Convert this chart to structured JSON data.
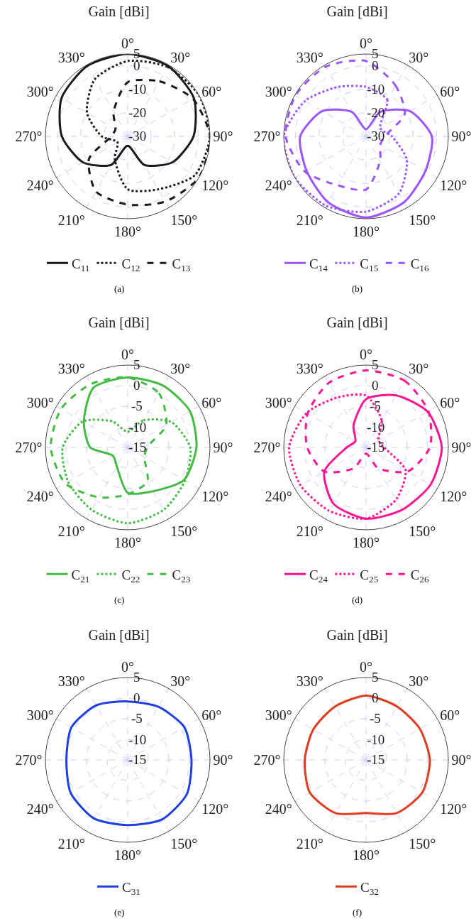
{
  "chart_data": [
    {
      "type": "radar",
      "title": "Gain [dBi]",
      "annotations": [
        "(a)"
      ],
      "categories": [
        "0°",
        "30°",
        "60°",
        "90°",
        "120°",
        "150°",
        "180°",
        "210°",
        "240°",
        "270°",
        "300°",
        "330°"
      ],
      "ylim": [
        -30,
        5
      ],
      "yticks": [
        -30,
        -20,
        -10,
        0,
        5
      ],
      "grid": true,
      "legend": "bottom",
      "series": [
        {
          "name": "C$_{11}$",
          "color": "#1a1a1a",
          "line_style": "solid",
          "values": [
            5,
            4.5,
            2.5,
            -2,
            -8,
            -16,
            -26,
            -16,
            -8,
            -2,
            2.5,
            4.5
          ]
        },
        {
          "name": "C$_{12}$",
          "color": "#1a1a1a",
          "line_style": "dotted",
          "values": [
            2,
            4,
            5,
            5,
            3,
            -4,
            -7.5,
            -19,
            -25,
            -19,
            -10,
            -2
          ]
        },
        {
          "name": "C$_{13}$",
          "color": "#1a1a1a",
          "line_style": "dashed",
          "values": [
            -7,
            -3,
            2,
            5,
            5,
            2,
            -1,
            -3,
            -11,
            -23,
            -24,
            -18
          ]
        }
      ]
    },
    {
      "type": "radar",
      "title": "Gain [dBi]",
      "annotations": [
        "(b)"
      ],
      "categories": [
        "0°",
        "30°",
        "60°",
        "90°",
        "120°",
        "150°",
        "180°",
        "210°",
        "240°",
        "270°",
        "300°",
        "330°"
      ],
      "ylim": [
        -30,
        5
      ],
      "yticks": [
        -30,
        -20,
        -10,
        0,
        5
      ],
      "grid": true,
      "legend": "bottom",
      "series": [
        {
          "name": "C$_{14}$",
          "color": "#9d55ff",
          "line_style": "solid",
          "values": [
            -27,
            -18,
            -8.5,
            -2,
            -0.8,
            2.3,
            4.5,
            2.3,
            -0.8,
            -2,
            -8.5,
            -18
          ]
        },
        {
          "name": "C$_{15}$",
          "color": "#9d55ff",
          "line_style": "dotted",
          "values": [
            -9,
            -12,
            -23,
            -19,
            -10,
            -2,
            2,
            4,
            5,
            5,
            0,
            -5.8
          ]
        },
        {
          "name": "C$_{16}$",
          "color": "#9d55ff",
          "line_style": "dashed",
          "values": [
            2,
            -5,
            -11,
            -22,
            -23,
            -18,
            -7.4,
            -6,
            0,
            4.2,
            4.7,
            4.2
          ]
        }
      ]
    },
    {
      "type": "radar",
      "title": "Gain [dBi]",
      "annotations": [
        "(c)"
      ],
      "categories": [
        "0°",
        "30°",
        "60°",
        "90°",
        "120°",
        "150°",
        "180°",
        "210°",
        "240°",
        "270°",
        "300°",
        "330°"
      ],
      "ylim": [
        -15,
        5
      ],
      "yticks": [
        -15,
        -10,
        -5,
        0,
        5
      ],
      "grid": true,
      "legend": "bottom",
      "series": [
        {
          "name": "C$_{21}$",
          "color": "#44bb44",
          "line_style": "solid",
          "values": [
            2,
            2.3,
            2.5,
            1.7,
            0.8,
            -2.7,
            -4,
            -9.7,
            -10.9,
            -5.9,
            -2.7,
            1.7
          ]
        },
        {
          "name": "C$_{22}$",
          "color": "#44bb44",
          "line_style": "dotted",
          "values": [
            -11.2,
            -7.4,
            -2.7,
            0.2,
            1.1,
            2.5,
            3.4,
            2.5,
            1.7,
            0.8,
            -2.4,
            -7.7
          ]
        },
        {
          "name": "C$_{23}$",
          "color": "#44bb44",
          "line_style": "dashed",
          "values": [
            2,
            0.2,
            -4.2,
            -10.3,
            -10.3,
            -5.4,
            -3.6,
            -1,
            2.5,
            3.7,
            3.7,
            2.8
          ]
        }
      ]
    },
    {
      "type": "radar",
      "title": "Gain [dBi]",
      "annotations": [
        "(d)"
      ],
      "categories": [
        "0°",
        "30°",
        "60°",
        "90°",
        "120°",
        "150°",
        "180°",
        "210°",
        "240°",
        "270°",
        "300°",
        "330°"
      ],
      "ylim": [
        -15,
        5
      ],
      "yticks": [
        -15,
        -10,
        -5,
        0,
        5
      ],
      "grid": true,
      "legend": "bottom",
      "series": [
        {
          "name": "C$_{24}$",
          "color": "#ff1493",
          "line_style": "solid",
          "values": [
            -3.3,
            -0.4,
            2.3,
            3.4,
            3.1,
            2.5,
            2.3,
            0.8,
            -3.3,
            -10.3,
            -12,
            -8.9
          ]
        },
        {
          "name": "C$_{25}$",
          "color": "#ff1493",
          "line_style": "dotted",
          "values": [
            -2.4,
            -7.4,
            -11.5,
            -10.6,
            -3.9,
            -0.4,
            2.3,
            2.8,
            3.4,
            3.7,
            1.7,
            -1
          ]
        },
        {
          "name": "C$_{26}$",
          "color": "#ff1493",
          "line_style": "dashed",
          "values": [
            3.7,
            3.7,
            2.5,
            0.5,
            -3.3,
            -9.2,
            -13.5,
            -9.2,
            -3.3,
            -0.7,
            1.4,
            3.1
          ]
        }
      ]
    },
    {
      "type": "radar",
      "title": "Gain [dBi]",
      "annotations": [
        "(e)"
      ],
      "categories": [
        "0°",
        "30°",
        "60°",
        "90°",
        "120°",
        "150°",
        "180°",
        "210°",
        "240°",
        "270°",
        "300°",
        "330°"
      ],
      "ylim": [
        -15,
        5
      ],
      "yticks": [
        -15,
        -10,
        -5,
        0,
        5
      ],
      "grid": true,
      "legend": "bottom",
      "series": [
        {
          "name": "C$_{31}$",
          "color": "#1f3fe6",
          "line_style": "solid",
          "values": [
            -0.8,
            -0.1,
            0.9,
            0.5,
            1.6,
            1.7,
            0.8,
            1.4,
            1,
            -0.1,
            0.8,
            0.3
          ]
        }
      ]
    },
    {
      "type": "radar",
      "title": "Gain [dBi]",
      "annotations": [
        "(f)"
      ],
      "categories": [
        "0°",
        "30°",
        "60°",
        "90°",
        "120°",
        "150°",
        "180°",
        "210°",
        "240°",
        "270°",
        "300°",
        "330°"
      ],
      "ylim": [
        -15,
        5
      ],
      "yticks": [
        -15,
        -10,
        -5,
        0,
        5
      ],
      "grid": true,
      "legend": "bottom",
      "series": [
        {
          "name": "C$_{32}$",
          "color": "#e23b1f",
          "line_style": "solid",
          "values": [
            0.6,
            0,
            0.1,
            0.5,
            0.8,
            -0.1,
            -2.1,
            -0.1,
            0.8,
            -0.1,
            -0.2,
            0
          ]
        }
      ]
    }
  ]
}
